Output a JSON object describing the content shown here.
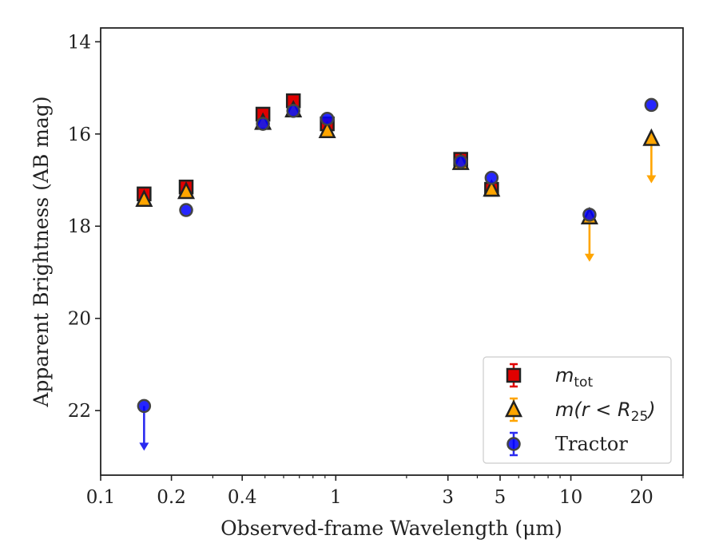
{
  "chart_data": {
    "type": "scatter",
    "xlabel": "Observed-frame Wavelength (μm)",
    "ylabel": "Apparent Brightness (AB mag)",
    "x_scale": "log",
    "xlim": [
      0.1,
      30
    ],
    "ylim": [
      23.4,
      13.7
    ],
    "y_inverted": true,
    "x_ticks": [
      0.1,
      0.2,
      0.4,
      1,
      3,
      5,
      10,
      20
    ],
    "x_tick_labels": [
      "0.1",
      "0.2",
      "0.4",
      "1",
      "3",
      "5",
      "10",
      "20"
    ],
    "y_ticks": [
      14,
      16,
      18,
      20,
      22
    ],
    "y_tick_labels": [
      "14",
      "16",
      "18",
      "20",
      "22"
    ],
    "grid": false,
    "legend_position": "lower-right",
    "series": [
      {
        "name": "m_tot",
        "legend_main": "m",
        "legend_sub": "tot",
        "marker": "square",
        "color": "#e00000",
        "points": [
          {
            "x": 0.153,
            "y": 17.3
          },
          {
            "x": 0.231,
            "y": 17.15
          },
          {
            "x": 0.49,
            "y": 15.57
          },
          {
            "x": 0.66,
            "y": 15.28
          },
          {
            "x": 0.92,
            "y": 15.78
          },
          {
            "x": 3.4,
            "y": 16.55
          },
          {
            "x": 4.6,
            "y": 17.2
          }
        ]
      },
      {
        "name": "m(r < R25)",
        "legend_main": "m(r < R",
        "legend_sub": "25",
        "legend_end": ")",
        "marker": "triangle",
        "color": "#ffa500",
        "points": [
          {
            "x": 0.153,
            "y": 17.42
          },
          {
            "x": 0.231,
            "y": 17.25
          },
          {
            "x": 0.49,
            "y": 15.75
          },
          {
            "x": 0.66,
            "y": 15.48
          },
          {
            "x": 0.92,
            "y": 15.93
          },
          {
            "x": 3.4,
            "y": 16.62
          },
          {
            "x": 4.6,
            "y": 17.2
          },
          {
            "x": 12.0,
            "y": 17.8,
            "upper_limit": true
          },
          {
            "x": 22.0,
            "y": 16.1,
            "upper_limit": true
          }
        ]
      },
      {
        "name": "Tractor",
        "legend_main": "Tractor",
        "marker": "circle",
        "color": "#0000ff",
        "points": [
          {
            "x": 0.153,
            "y": 21.9,
            "upper_limit": true
          },
          {
            "x": 0.231,
            "y": 17.65
          },
          {
            "x": 0.49,
            "y": 15.78
          },
          {
            "x": 0.66,
            "y": 15.5
          },
          {
            "x": 0.92,
            "y": 15.67
          },
          {
            "x": 3.4,
            "y": 16.6
          },
          {
            "x": 4.6,
            "y": 16.95
          },
          {
            "x": 12.0,
            "y": 17.75
          },
          {
            "x": 22.0,
            "y": 15.37
          }
        ]
      }
    ]
  }
}
